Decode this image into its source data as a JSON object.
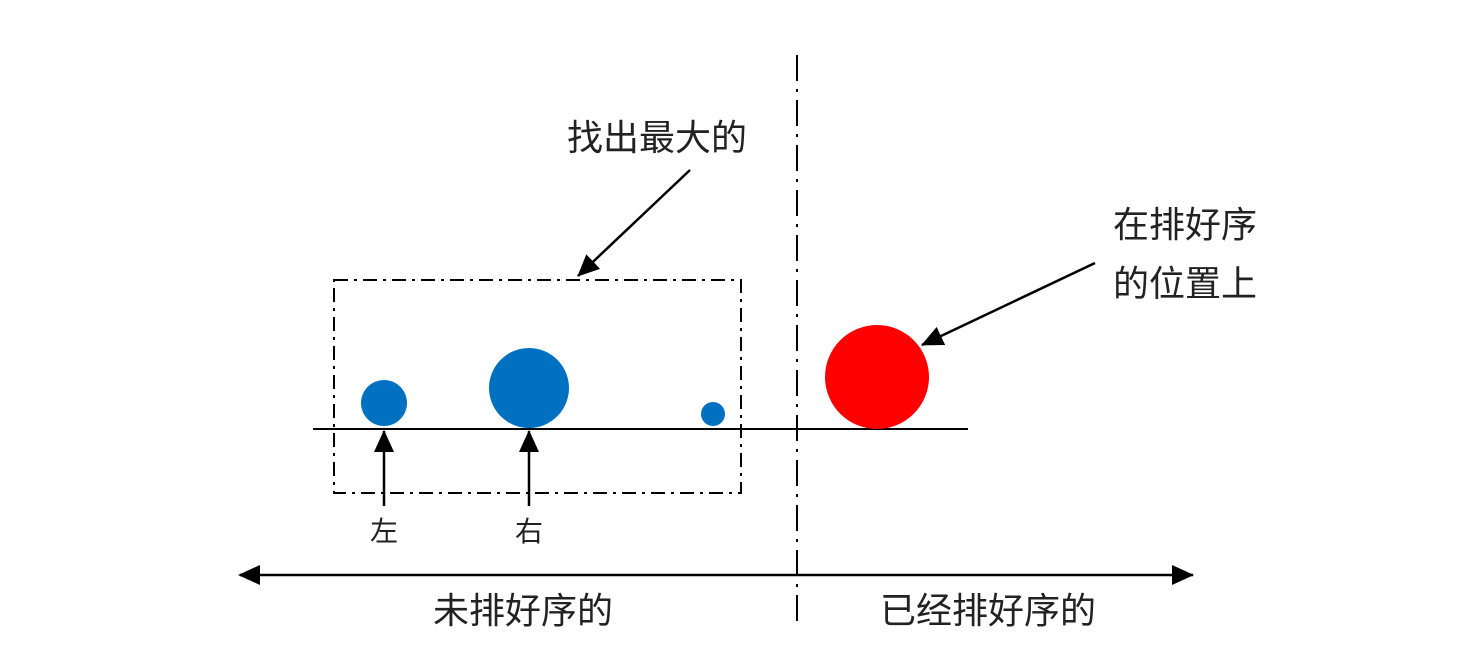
{
  "labels": {
    "find_max": "找出最大的",
    "sorted_pos_line1": "在排好序",
    "sorted_pos_line2": "的位置上",
    "left": "左",
    "right": "右",
    "unsorted": "未排好序的",
    "sorted": "已经排好序的"
  },
  "colors": {
    "unsorted_ball": "#0070c0",
    "sorted_ball": "#ff0000",
    "line": "#000000"
  }
}
